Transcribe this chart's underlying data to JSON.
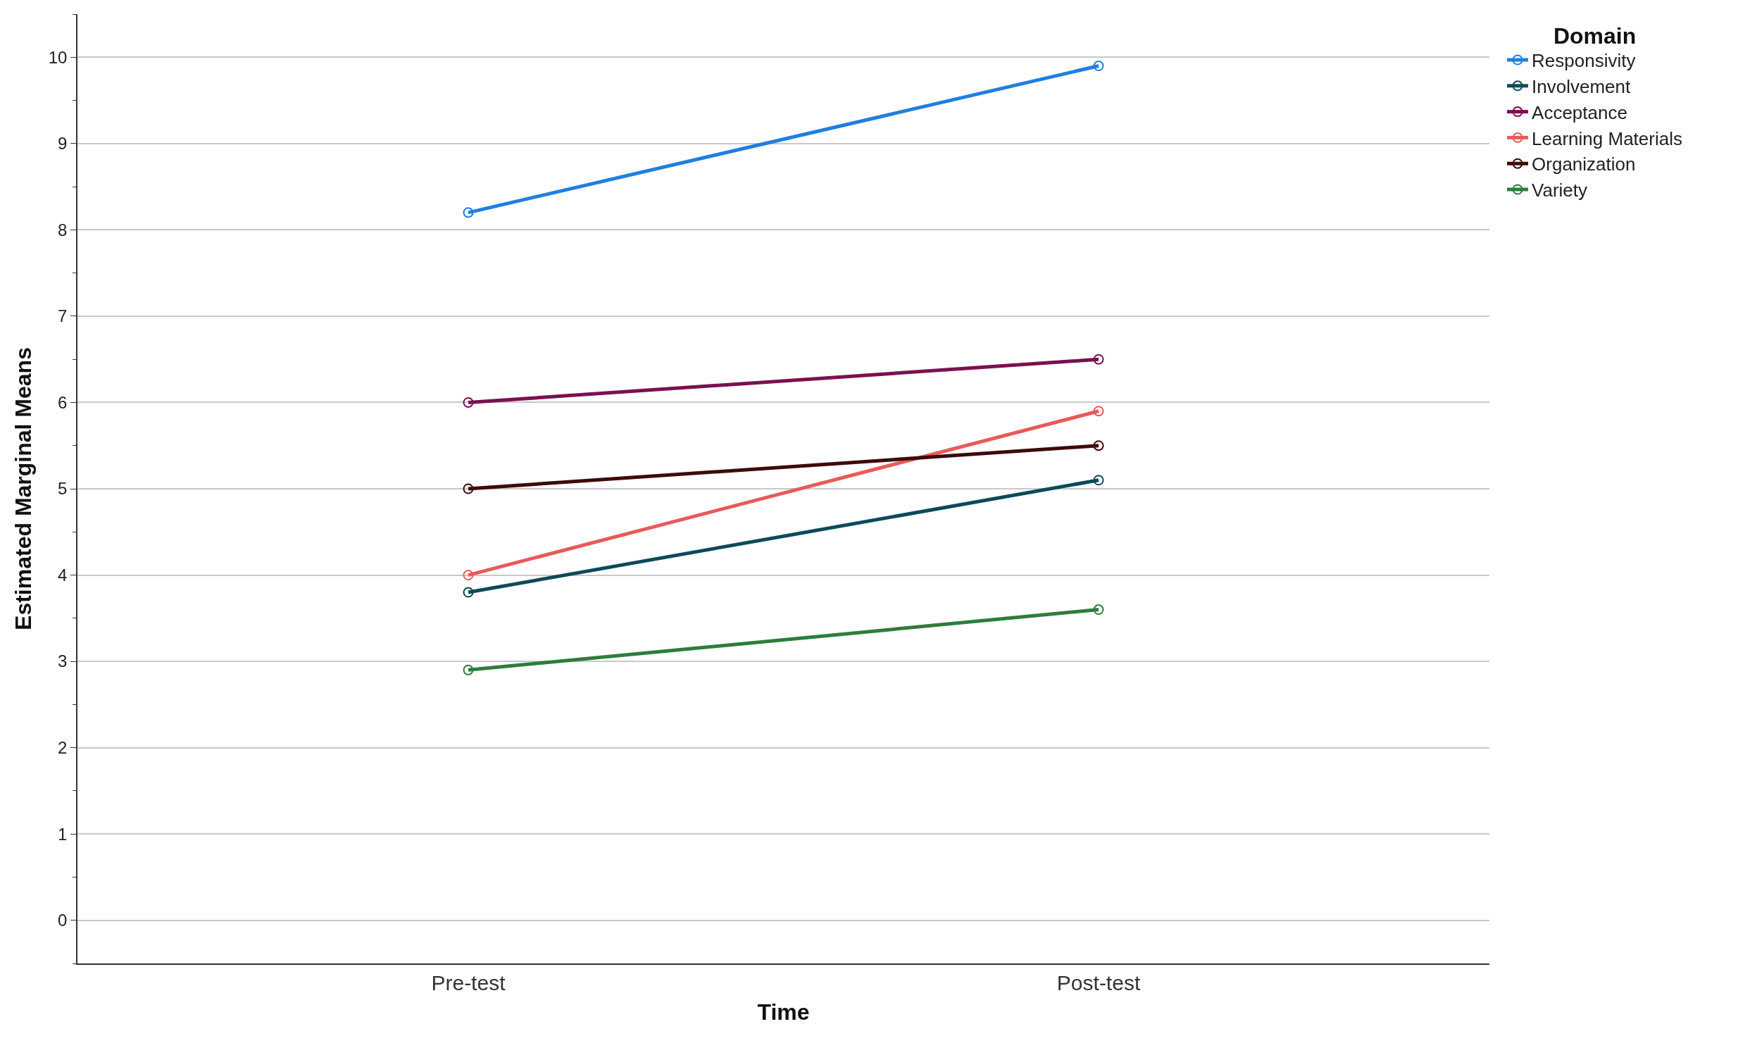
{
  "chart_data": {
    "type": "line",
    "xlabel": "Time",
    "ylabel": "Estimated Marginal Means",
    "legend_title": "Domain",
    "categories": [
      "Pre-test",
      "Post-test"
    ],
    "series": [
      {
        "name": "Responsivity",
        "color": "#1f7fe0",
        "values": [
          8.2,
          9.9
        ]
      },
      {
        "name": "Involvement",
        "color": "#0c4a5a",
        "values": [
          3.8,
          5.1
        ]
      },
      {
        "name": "Acceptance",
        "color": "#7b1050",
        "values": [
          6.0,
          6.5
        ]
      },
      {
        "name": "Learning Materials",
        "color": "#e85a5a",
        "values": [
          4.0,
          5.9
        ]
      },
      {
        "name": "Organization",
        "color": "#3d0a0a",
        "values": [
          5.0,
          5.5
        ]
      },
      {
        "name": "Variety",
        "color": "#2e7d3a",
        "values": [
          2.9,
          3.6
        ]
      }
    ],
    "ylim": [
      -0.5,
      10.5
    ],
    "yticks": [
      0,
      1,
      2,
      3,
      4,
      5,
      6,
      7,
      8,
      9,
      10
    ],
    "grid": "y",
    "legend": "top right",
    "marker": "circle",
    "line_style": "solid"
  }
}
